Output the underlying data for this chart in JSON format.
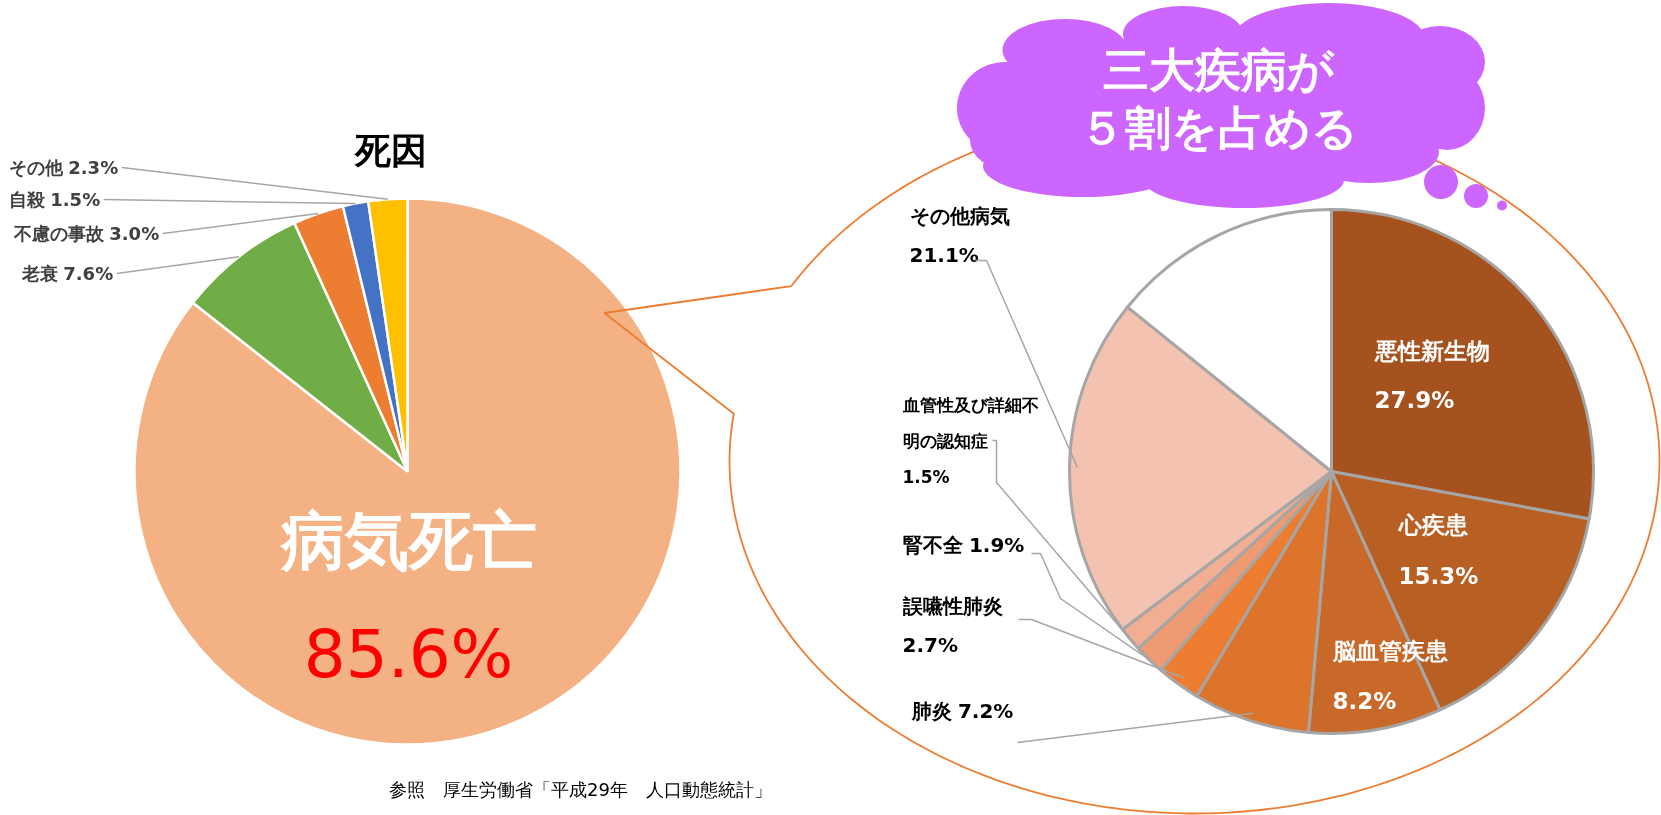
{
  "chart_data": [
    {
      "type": "pie",
      "title": "死因",
      "categories": [
        "病気死亡",
        "老衰",
        "不慮の事故",
        "自殺",
        "その他"
      ],
      "values": [
        85.6,
        7.6,
        3.0,
        1.5,
        2.3
      ],
      "colors": [
        "#f4b183",
        "#70ad47",
        "#ed7d31",
        "#4472c4",
        "#ffc000"
      ],
      "value_labels": [
        "85.6%",
        "7.6%",
        "3.0%",
        "1.5%",
        "2.3%"
      ],
      "annotations": [
        "参照　厚生労働省「平成29年　人口動態統計」"
      ]
    },
    {
      "type": "pie",
      "categories": [
        "悪性新生物",
        "心疾患",
        "脳血管疾患",
        "肺炎",
        "誤嚥性肺炎",
        "腎不全",
        "血管性及び詳細不明の認知症",
        "その他病気",
        null
      ],
      "values": [
        27.9,
        15.3,
        8.2,
        7.2,
        2.7,
        1.9,
        1.5,
        21.1,
        14.2
      ],
      "colors": [
        "#a5521e",
        "#b85f23",
        "#c8692a",
        "#dc742c",
        "#ed7d31",
        "#ef9a72",
        "#f2ae92",
        "#f4c2b0",
        "#ffffff"
      ],
      "value_labels": [
        "27.9%",
        "15.3%",
        "8.2%",
        "7.2%",
        "2.7%",
        "1.9%",
        "1.5%",
        "21.1%",
        null
      ],
      "annotations": [
        "三大疾病が５割を占める"
      ]
    }
  ]
}
